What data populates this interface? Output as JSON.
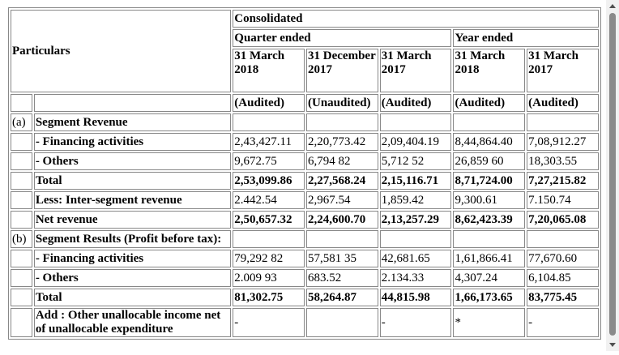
{
  "table": {
    "header": {
      "particulars": "Particulars",
      "consolidated": "Consolidated",
      "quarter_ended": "Quarter ended",
      "year_ended": "Year ended",
      "periods": [
        "31 March 2018",
        "31 December 2017",
        "31 March 2017",
        "31 March 2018",
        "31 March 2017"
      ],
      "audit": [
        "(Audited)",
        "(Unaudited)",
        "(Audited)",
        "(Audited)",
        "(Audited)"
      ]
    },
    "rows": [
      {
        "code": "(a)",
        "label": "Segment Revenue",
        "values": [
          null,
          null,
          null,
          null,
          null
        ],
        "bold": false
      },
      {
        "code": null,
        "label": "- Financing activities",
        "values": [
          "2,43,427.11",
          "2,20,773.42",
          "2,09,404.19",
          "8,44,864.40",
          "7,08,912.27"
        ],
        "bold": false
      },
      {
        "code": null,
        "label": "- Others",
        "values": [
          "9,672.75",
          "6,794 82",
          "5,712 52",
          "26,859 60",
          "18,303.55"
        ],
        "bold": false
      },
      {
        "code": null,
        "label": "Total",
        "values": [
          "2,53,099.86",
          "2,27,568.24",
          "2,15,116.71",
          "8,71,724.00",
          "7,27,215.82"
        ],
        "bold": true
      },
      {
        "code": null,
        "label": "Less: Inter-segment revenue",
        "values": [
          "2.442.54",
          "2,967.54",
          "1,859.42",
          "9,300.61",
          "7.150.74"
        ],
        "bold": false
      },
      {
        "code": null,
        "label": "Net revenue",
        "values": [
          "2,50,657.32",
          "2,24,600.70",
          "2,13,257.29",
          "8,62,423.39",
          "7,20,065.08"
        ],
        "bold": true
      },
      {
        "code": "(b)",
        "label": "Segment Results (Profit before tax):",
        "values": [
          null,
          null,
          null,
          null,
          null
        ],
        "bold": false
      },
      {
        "code": null,
        "label": "- Financing activities",
        "values": [
          "79,292 82",
          "57,581 35",
          "42,681.65",
          "1,61,866.41",
          "77,670.60"
        ],
        "bold": false
      },
      {
        "code": null,
        "label": "- Others",
        "values": [
          "2.009 93",
          "683.52",
          "2.134.33",
          "4,307.24",
          "6,104.85"
        ],
        "bold": false
      },
      {
        "code": null,
        "label": "Total",
        "values": [
          "81,302.75",
          "58,264.87",
          "44,815.98",
          "1,66,173.65",
          "83,775.45"
        ],
        "bold": true
      },
      {
        "code": null,
        "label": "Add : Other unallocable income net of unallocable expenditure",
        "values": [
          "-",
          null,
          "-",
          "*",
          "-"
        ],
        "bold": false
      }
    ]
  }
}
